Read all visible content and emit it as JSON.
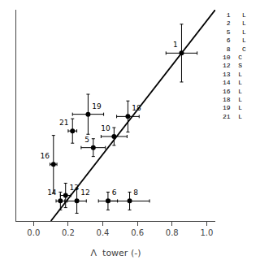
{
  "chart_data": {
    "type": "scatter",
    "xlabel": "Λ  tower (-)",
    "xlim": [
      -0.1,
      1.05
    ],
    "ylim": [
      0.1,
      1.05
    ],
    "xticks": [
      {
        "value": 0,
        "label": "0.0"
      },
      0.2,
      0.4,
      0.6,
      0.8,
      {
        "value": 1,
        "label": "1.0"
      }
    ],
    "yticks": [],
    "tick_labels": "x",
    "grid": false,
    "annotations": [
      " 1   L",
      " 2   L",
      " 5   L",
      " 6   L",
      " 8   C",
      "10  C",
      "12  S",
      "13  L",
      "14  L",
      "16  L",
      "18  L",
      "19  L",
      "21  L"
    ],
    "series": [
      {
        "type": "scatter",
        "color": "black",
        "marker": "circle",
        "labels": [
          "1",
          "5",
          "6",
          "8",
          "10",
          "12",
          "13",
          "14",
          "16",
          "18",
          "19",
          "21"
        ],
        "x": [
          0.855,
          0.345,
          0.43,
          0.555,
          0.465,
          0.25,
          0.185,
          0.155,
          0.115,
          0.545,
          0.315,
          0.225
        ],
        "y": [
          0.855,
          0.43,
          0.19,
          0.19,
          0.48,
          0.19,
          0.215,
          0.19,
          0.355,
          0.57,
          0.58,
          0.505
        ],
        "xerr": [
          0.09,
          0.07,
          0.055,
          0.115,
          0.075,
          0.055,
          0.03,
          0.025,
          0.02,
          0.065,
          0.09,
          0.025
        ],
        "yerr": [
          0.13,
          0.04,
          0.04,
          0.04,
          0.04,
          0.055,
          0.055,
          0.04,
          0.13,
          0.07,
          0.09,
          0.055
        ]
      },
      {
        "type": "line",
        "color": "black",
        "x": [
          0.1,
          1.05
        ],
        "y": [
          0.1,
          1.05
        ]
      }
    ]
  }
}
